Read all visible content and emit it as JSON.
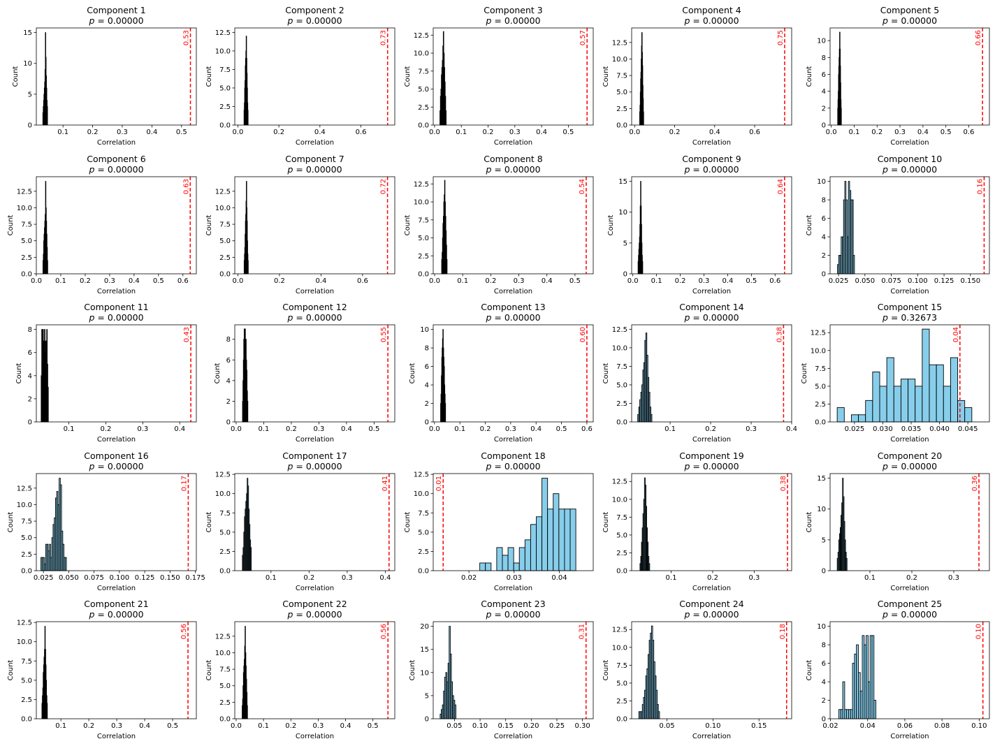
{
  "figure": {
    "bar_fill": "#87ceeb",
    "bar_edge": "#000000",
    "line_color": "#ff0000",
    "xlabel": "Correlation",
    "ylabel": "Count"
  },
  "chart_data": [
    {
      "type": "bar",
      "title": "Component 1",
      "subtitle": "p = 0.00000",
      "xlabel": "Correlation",
      "ylabel": "Count",
      "xlim": [
        0.01,
        0.55
      ],
      "ylim": [
        0,
        15.75
      ],
      "xticks": [
        0.1,
        0.2,
        0.3,
        0.4,
        0.5
      ],
      "yticks": [
        0,
        5,
        10,
        15
      ],
      "bin_start": 0.032,
      "bin_width": 0.0012,
      "counts": [
        2,
        3,
        4,
        5,
        6,
        7,
        9,
        15,
        11,
        8,
        6,
        4,
        3
      ],
      "observed": 0.53,
      "observed_label": "0.53"
    },
    {
      "type": "bar",
      "title": "Component 2",
      "subtitle": "p = 0.00000",
      "xlabel": "Correlation",
      "ylabel": "Count",
      "xlim": [
        -0.015,
        0.765
      ],
      "ylim": [
        0,
        13.1
      ],
      "xticks": [
        0.0,
        0.2,
        0.4,
        0.6
      ],
      "yticks": [
        0.0,
        2.5,
        5.0,
        7.5,
        10.0,
        12.5
      ],
      "bin_start": 0.03,
      "bin_width": 0.0015,
      "counts": [
        2,
        3,
        5,
        6,
        8,
        9,
        10,
        12,
        9,
        7,
        5,
        3,
        2
      ],
      "observed": 0.73,
      "observed_label": "0.73"
    },
    {
      "type": "bar",
      "title": "Component 3",
      "subtitle": "p = 0.00000",
      "xlabel": "Correlation",
      "ylabel": "Count",
      "xlim": [
        -0.005,
        0.593
      ],
      "ylim": [
        0,
        13.5
      ],
      "xticks": [
        0.0,
        0.1,
        0.2,
        0.3,
        0.4,
        0.5
      ],
      "yticks": [
        0.0,
        2.5,
        5.0,
        7.5,
        10.0,
        12.5
      ],
      "bin_start": 0.02,
      "bin_width": 0.0018,
      "counts": [
        2,
        4,
        5,
        7,
        8,
        9,
        11,
        13,
        10,
        8,
        6,
        4,
        2
      ],
      "observed": 0.57,
      "observed_label": "0.57"
    },
    {
      "type": "bar",
      "title": "Component 4",
      "subtitle": "p = 0.00000",
      "xlabel": "Correlation",
      "ylabel": "Count",
      "xlim": [
        -0.015,
        0.785
      ],
      "ylim": [
        0,
        14.7
      ],
      "xticks": [
        0.0,
        0.2,
        0.4,
        0.6
      ],
      "yticks": [
        0.0,
        2.5,
        5.0,
        7.5,
        10.0,
        12.5
      ],
      "bin_start": 0.025,
      "bin_width": 0.0015,
      "counts": [
        2,
        3,
        5,
        7,
        8,
        10,
        12,
        14,
        11,
        9,
        6,
        4,
        2
      ],
      "observed": 0.75,
      "observed_label": "0.75"
    },
    {
      "type": "bar",
      "title": "Component 5",
      "subtitle": "p = 0.00000",
      "xlabel": "Correlation",
      "ylabel": "Count",
      "xlim": [
        -0.005,
        0.69
      ],
      "ylim": [
        0,
        11.5
      ],
      "xticks": [
        0.0,
        0.1,
        0.2,
        0.3,
        0.4,
        0.5,
        0.6
      ],
      "yticks": [
        0,
        2,
        4,
        6,
        8,
        10
      ],
      "bin_start": 0.028,
      "bin_width": 0.0012,
      "counts": [
        2,
        3,
        4,
        6,
        7,
        8,
        9,
        11,
        9,
        7,
        5,
        3,
        2
      ],
      "observed": 0.66,
      "observed_label": "0.66"
    },
    {
      "type": "bar",
      "title": "Component 6",
      "subtitle": "p = 0.00000",
      "xlabel": "Correlation",
      "ylabel": "Count",
      "xlim": [
        0.0,
        0.655
      ],
      "ylim": [
        0,
        14.7
      ],
      "xticks": [
        0.0,
        0.1,
        0.2,
        0.3,
        0.4,
        0.5,
        0.6
      ],
      "yticks": [
        0.0,
        2.5,
        5.0,
        7.5,
        10.0,
        12.5
      ],
      "bin_start": 0.027,
      "bin_width": 0.0015,
      "counts": [
        2,
        3,
        5,
        6,
        7,
        8,
        9,
        14,
        10,
        8,
        6,
        4,
        2
      ],
      "observed": 0.63,
      "observed_label": "0.63"
    },
    {
      "type": "bar",
      "title": "Component 7",
      "subtitle": "p = 0.00000",
      "xlabel": "Correlation",
      "ylabel": "Count",
      "xlim": [
        -0.015,
        0.755
      ],
      "ylim": [
        0,
        14.7
      ],
      "xticks": [
        0.0,
        0.2,
        0.4,
        0.6
      ],
      "yticks": [
        0.0,
        2.5,
        5.0,
        7.5,
        10.0,
        12.5
      ],
      "bin_start": 0.03,
      "bin_width": 0.0015,
      "counts": [
        2,
        3,
        4,
        6,
        8,
        9,
        11,
        14,
        10,
        8,
        5,
        3,
        2
      ],
      "observed": 0.72,
      "observed_label": "0.72"
    },
    {
      "type": "bar",
      "title": "Component 8",
      "subtitle": "p = 0.00000",
      "xlabel": "Correlation",
      "ylabel": "Count",
      "xlim": [
        -0.005,
        0.565
      ],
      "ylim": [
        0,
        13.5
      ],
      "xticks": [
        0.0,
        0.1,
        0.2,
        0.3,
        0.4,
        0.5
      ],
      "yticks": [
        0.0,
        2.5,
        5.0,
        7.5,
        10.0,
        12.5
      ],
      "bin_start": 0.025,
      "bin_width": 0.0015,
      "counts": [
        2,
        3,
        5,
        7,
        8,
        10,
        11,
        13,
        10,
        8,
        6,
        4,
        2
      ],
      "observed": 0.54,
      "observed_label": "0.54"
    },
    {
      "type": "bar",
      "title": "Component 9",
      "subtitle": "p = 0.00000",
      "xlabel": "Correlation",
      "ylabel": "Count",
      "xlim": [
        -0.005,
        0.67
      ],
      "ylim": [
        0,
        15.75
      ],
      "xticks": [
        0.0,
        0.1,
        0.2,
        0.3,
        0.4,
        0.5,
        0.6
      ],
      "yticks": [
        0,
        5,
        10,
        15
      ],
      "bin_start": 0.022,
      "bin_width": 0.0015,
      "counts": [
        2,
        3,
        4,
        5,
        6,
        8,
        11,
        15,
        11,
        8,
        5,
        3,
        2
      ],
      "observed": 0.64,
      "observed_label": "0.64"
    },
    {
      "type": "bar",
      "title": "Component 10",
      "subtitle": "p = 0.00000",
      "xlabel": "Correlation",
      "ylabel": "Count",
      "xlim": [
        0.017,
        0.168
      ],
      "ylim": [
        0,
        10.5
      ],
      "xticks": [
        0.025,
        0.05,
        0.075,
        0.1,
        0.125,
        0.15
      ],
      "yticks": [
        0,
        2,
        4,
        6,
        8,
        10
      ],
      "bin_start": 0.024,
      "bin_width": 0.00115,
      "counts": [
        1,
        2,
        2,
        4,
        4,
        8,
        10,
        8,
        4,
        10,
        9,
        8,
        8,
        2
      ],
      "observed": 0.163,
      "observed_label": "0.16"
    },
    {
      "type": "bar",
      "title": "Component 11",
      "subtitle": "p = 0.00000",
      "xlabel": "Correlation",
      "ylabel": "Count",
      "xlim": [
        0.012,
        0.445
      ],
      "ylim": [
        0,
        8.4
      ],
      "xticks": [
        0.1,
        0.2,
        0.3,
        0.4
      ],
      "yticks": [
        0,
        2,
        4,
        6,
        8
      ],
      "bin_start": 0.025,
      "bin_width": 0.0015,
      "counts": [
        4,
        8,
        5,
        8,
        3,
        7,
        8,
        6,
        7,
        4,
        8,
        5,
        3
      ],
      "observed": 0.43,
      "observed_label": "0.43"
    },
    {
      "type": "bar",
      "title": "Component 12",
      "subtitle": "p = 0.00000",
      "xlabel": "Correlation",
      "ylabel": "Count",
      "xlim": [
        -0.005,
        0.575
      ],
      "ylim": [
        0,
        9.4
      ],
      "xticks": [
        0.0,
        0.1,
        0.2,
        0.3,
        0.4,
        0.5
      ],
      "yticks": [
        0,
        2,
        4,
        6,
        8
      ],
      "bin_start": 0.023,
      "bin_width": 0.0015,
      "counts": [
        2,
        4,
        6,
        8,
        9,
        8,
        9,
        7,
        8,
        6,
        5,
        3,
        2
      ],
      "observed": 0.55,
      "observed_label": "0.55"
    },
    {
      "type": "bar",
      "title": "Component 13",
      "subtitle": "p = 0.00000",
      "xlabel": "Correlation",
      "ylabel": "Count",
      "xlim": [
        -0.005,
        0.625
      ],
      "ylim": [
        0,
        10.5
      ],
      "xticks": [
        0.0,
        0.1,
        0.2,
        0.3,
        0.4,
        0.5,
        0.6
      ],
      "yticks": [
        0,
        2,
        4,
        6,
        8,
        10
      ],
      "bin_start": 0.024,
      "bin_width": 0.0015,
      "counts": [
        2,
        3,
        5,
        7,
        8,
        9,
        10,
        8,
        7,
        6,
        4,
        3,
        2
      ],
      "observed": 0.6,
      "observed_label": "0.60"
    },
    {
      "type": "bar",
      "title": "Component 14",
      "subtitle": "p = 0.00000",
      "xlabel": "Correlation",
      "ylabel": "Count",
      "xlim": [
        0.005,
        0.4
      ],
      "ylim": [
        0,
        13.1
      ],
      "xticks": [
        0.1,
        0.2,
        0.3,
        0.4
      ],
      "yticks": [
        0.0,
        2.5,
        5.0,
        7.5,
        10.0,
        12.5
      ],
      "bin_start": 0.02,
      "bin_width": 0.0025,
      "counts": [
        1,
        2,
        3,
        4,
        5,
        7,
        8,
        11,
        12,
        9,
        6,
        4,
        2,
        1
      ],
      "observed": 0.38,
      "observed_label": "0.38"
    },
    {
      "type": "bar",
      "title": "Component 15",
      "subtitle": "p = 0.32673",
      "xlabel": "Correlation",
      "ylabel": "Count",
      "xlim": [
        0.0207,
        0.0488
      ],
      "ylim": [
        0,
        13.6
      ],
      "xticks": [
        0.025,
        0.03,
        0.035,
        0.04,
        0.045
      ],
      "yticks": [
        0.0,
        2.5,
        5.0,
        7.5,
        10.0,
        12.5
      ],
      "bin_start": 0.02195,
      "bin_width": 0.00125,
      "counts": [
        2,
        0,
        1,
        1,
        3,
        7,
        5,
        9,
        5,
        6,
        6,
        5,
        13,
        8,
        8,
        5,
        9,
        3,
        2
      ],
      "observed": 0.0436,
      "observed_label": "0.04"
    },
    {
      "type": "bar",
      "title": "Component 16",
      "subtitle": "p = 0.00000",
      "xlabel": "Correlation",
      "ylabel": "Count",
      "xlim": [
        0.018,
        0.176
      ],
      "ylim": [
        0,
        14.7
      ],
      "xticks": [
        0.025,
        0.05,
        0.075,
        0.1,
        0.125,
        0.15,
        0.175
      ],
      "yticks": [
        0.0,
        2.5,
        5.0,
        7.5,
        10.0,
        12.5
      ],
      "bin_start": 0.0225,
      "bin_width": 0.0012,
      "counts": [
        2,
        2,
        2,
        1,
        4,
        4,
        3,
        4,
        2,
        5,
        7,
        8,
        11,
        12,
        10,
        14,
        13,
        6,
        4,
        2,
        2
      ],
      "observed": 0.168,
      "observed_label": "0.17"
    },
    {
      "type": "bar",
      "title": "Component 17",
      "subtitle": "p = 0.00000",
      "xlabel": "Correlation",
      "ylabel": "Count",
      "xlim": [
        0.005,
        0.425
      ],
      "ylim": [
        0,
        12.6
      ],
      "xticks": [
        0.1,
        0.2,
        0.3,
        0.4
      ],
      "yticks": [
        0.0,
        2.5,
        5.0,
        7.5,
        10.0,
        12.5
      ],
      "bin_start": 0.025,
      "bin_width": 0.0018,
      "counts": [
        2,
        3,
        5,
        7,
        8,
        9,
        10,
        12,
        11,
        8,
        6,
        4,
        3
      ],
      "observed": 0.41,
      "observed_label": "0.41"
    },
    {
      "type": "bar",
      "title": "Component 18",
      "subtitle": "p = 0.00000",
      "xlabel": "Correlation",
      "ylabel": "Count",
      "xlim": [
        0.0121,
        0.0475
      ],
      "ylim": [
        0,
        12.6
      ],
      "xticks": [
        0.02,
        0.03,
        0.04
      ],
      "yticks": [
        0.0,
        2.5,
        5.0,
        7.5,
        10.0,
        12.5
      ],
      "bin_start": 0.0224,
      "bin_width": 0.00125,
      "counts": [
        1,
        1,
        0,
        3,
        2,
        3,
        1,
        3,
        4,
        6,
        7,
        12,
        8,
        10,
        8,
        8,
        8
      ],
      "observed": 0.0143,
      "observed_label": "0.01"
    },
    {
      "type": "bar",
      "title": "Component 19",
      "subtitle": "p = 0.00000",
      "xlabel": "Correlation",
      "ylabel": "Count",
      "xlim": [
        0.005,
        0.39
      ],
      "ylim": [
        0,
        13.6
      ],
      "xticks": [
        0.1,
        0.2,
        0.3
      ],
      "yticks": [
        0.0,
        2.5,
        5.0,
        7.5,
        10.0,
        12.5
      ],
      "bin_start": 0.025,
      "bin_width": 0.0018,
      "counts": [
        1,
        2,
        4,
        6,
        8,
        10,
        13,
        12,
        9,
        6,
        4,
        2,
        1
      ],
      "observed": 0.38,
      "observed_label": "0.38"
    },
    {
      "type": "bar",
      "title": "Component 20",
      "subtitle": "p = 0.00000",
      "xlabel": "Correlation",
      "ylabel": "Count",
      "xlim": [
        0.005,
        0.385
      ],
      "ylim": [
        0,
        15.75
      ],
      "xticks": [
        0.1,
        0.2,
        0.3
      ],
      "yticks": [
        0,
        5,
        10,
        15
      ],
      "bin_start": 0.022,
      "bin_width": 0.0018,
      "counts": [
        2,
        3,
        5,
        6,
        7,
        9,
        11,
        15,
        12,
        8,
        5,
        3,
        2
      ],
      "observed": 0.36,
      "observed_label": "0.36"
    },
    {
      "type": "bar",
      "title": "Component 21",
      "subtitle": "p = 0.00000",
      "xlabel": "Correlation",
      "ylabel": "Count",
      "xlim": [
        0.012,
        0.585
      ],
      "ylim": [
        0,
        12.6
      ],
      "xticks": [
        0.1,
        0.2,
        0.3,
        0.4,
        0.5
      ],
      "yticks": [
        0.0,
        2.5,
        5.0,
        7.5,
        10.0,
        12.5
      ],
      "bin_start": 0.032,
      "bin_width": 0.0015,
      "counts": [
        2,
        3,
        4,
        6,
        7,
        8,
        9,
        12,
        9,
        7,
        5,
        3,
        2
      ],
      "observed": 0.555,
      "observed_label": "0.56"
    },
    {
      "type": "bar",
      "title": "Component 22",
      "subtitle": "p = 0.00000",
      "xlabel": "Correlation",
      "ylabel": "Count",
      "xlim": [
        -0.005,
        0.58
      ],
      "ylim": [
        0,
        14.7
      ],
      "xticks": [
        0.0,
        0.1,
        0.2,
        0.3,
        0.4,
        0.5
      ],
      "yticks": [
        0.0,
        2.5,
        5.0,
        7.5,
        10.0,
        12.5
      ],
      "bin_start": 0.022,
      "bin_width": 0.0015,
      "counts": [
        2,
        3,
        5,
        7,
        8,
        9,
        11,
        14,
        10,
        8,
        6,
        4,
        2
      ],
      "observed": 0.555,
      "observed_label": "0.56"
    },
    {
      "type": "bar",
      "title": "Component 23",
      "subtitle": "p = 0.00000",
      "xlabel": "Correlation",
      "ylabel": "Count",
      "xlim": [
        0.0085,
        0.321
      ],
      "ylim": [
        0,
        21
      ],
      "xticks": [
        0.05,
        0.1,
        0.15,
        0.2,
        0.25,
        0.3
      ],
      "yticks": [
        0,
        5,
        10,
        15,
        20
      ],
      "bin_start": 0.022,
      "bin_width": 0.0022,
      "counts": [
        1,
        2,
        3,
        6,
        9,
        10,
        8,
        12,
        20,
        14,
        8,
        5,
        4,
        3
      ],
      "observed": 0.307,
      "observed_label": "0.31"
    },
    {
      "type": "bar",
      "title": "Component 24",
      "subtitle": "p = 0.00000",
      "xlabel": "Correlation",
      "ylabel": "Count",
      "xlim": [
        0.0117,
        0.1855
      ],
      "ylim": [
        0,
        13.6
      ],
      "xticks": [
        0.05,
        0.1,
        0.15
      ],
      "yticks": [
        0.0,
        2.5,
        5.0,
        7.5,
        10.0,
        12.5
      ],
      "bin_start": 0.0195,
      "bin_width": 0.00125,
      "counts": [
        1,
        1,
        1,
        2,
        3,
        4,
        6,
        7,
        9,
        11,
        12,
        13,
        11,
        8,
        6,
        4,
        2,
        1
      ],
      "observed": 0.18,
      "observed_label": "0.18"
    },
    {
      "type": "bar",
      "title": "Component 25",
      "subtitle": "p = 0.00000",
      "xlabel": "Correlation",
      "ylabel": "Count",
      "xlim": [
        0.0198,
        0.1055
      ],
      "ylim": [
        0,
        10.5
      ],
      "xticks": [
        0.02,
        0.04,
        0.06,
        0.08,
        0.1
      ],
      "yticks": [
        0,
        2,
        4,
        6,
        8,
        10
      ],
      "bin_start": 0.0245,
      "bin_width": 0.00105,
      "counts": [
        1,
        1,
        4,
        1,
        1,
        1,
        1,
        6,
        7,
        8,
        5,
        3,
        9,
        8,
        9,
        4,
        9,
        9,
        2
      ],
      "observed": 0.102,
      "observed_label": "0.10"
    }
  ]
}
